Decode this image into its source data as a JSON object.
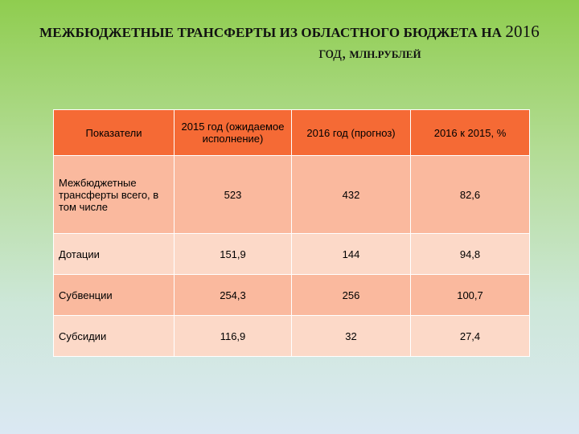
{
  "title": {
    "line1_text": "МЕЖБЮДЖЕТНЫЕ ТРАНСФЕРТЫ ИЗ ОБЛАСТНОГО БЮДЖЕТА НА",
    "line1_year": "2016",
    "line2_word": "год,",
    "line2_unit": "МЛН.РУБЛЕЙ"
  },
  "table": {
    "headers": [
      "Показатели",
      "2015 год (ожидаемое исполнение)",
      "2016 год (прогноз)",
      "2016 к 2015, %"
    ],
    "rows": [
      {
        "label": "Межбюджетные трансферты всего, в том числе",
        "v2015": "523",
        "v2016": "432",
        "pct": "82,6"
      },
      {
        "label": "Дотации",
        "v2015": "151,9",
        "v2016": "144",
        "pct": "94,8"
      },
      {
        "label": "Субвенции",
        "v2015": "254,3",
        "v2016": "256",
        "pct": "100,7"
      },
      {
        "label": "Субсидии",
        "v2015": "116,9",
        "v2016": "32",
        "pct": "27,4"
      }
    ]
  },
  "colors": {
    "header_bg": "#f56a35",
    "row_dark": "#fab99e",
    "row_light": "#fcd9c8",
    "bg_top": "#8fcd4f",
    "bg_bottom": "#dbe8f3"
  }
}
